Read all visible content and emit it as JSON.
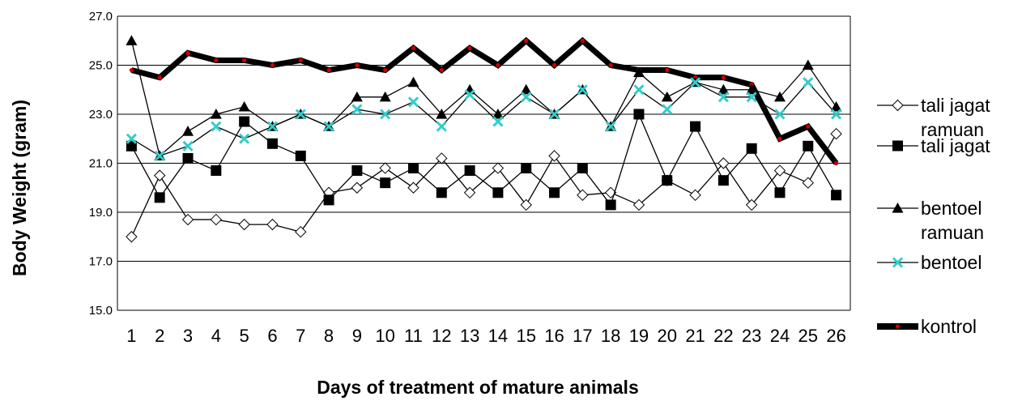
{
  "chart_data": {
    "type": "line",
    "xlabel": "Days of treatment of mature animals",
    "ylabel": "Body Weight (gram)",
    "ylim": [
      15,
      27
    ],
    "yticks": [
      "15.0",
      "17.0",
      "19.0",
      "21.0",
      "23.0",
      "25.0",
      "27.0"
    ],
    "grid": true,
    "legend_position": "right",
    "categories": [
      "1",
      "2",
      "3",
      "4",
      "5",
      "6",
      "7",
      "8",
      "9",
      "10",
      "11",
      "12",
      "13",
      "14",
      "15",
      "16",
      "17",
      "18",
      "19",
      "20",
      "21",
      "22",
      "23",
      "24",
      "25",
      "26"
    ],
    "series": [
      {
        "name": "tali jagat ramuan",
        "legend_lines": [
          "tali jagat",
          "ramuan"
        ],
        "marker": "open-diamond",
        "color": "#000000",
        "values": [
          18.0,
          20.5,
          18.7,
          18.7,
          18.5,
          18.5,
          18.2,
          19.8,
          20.0,
          20.8,
          20.0,
          21.2,
          19.8,
          20.8,
          19.3,
          21.3,
          19.7,
          19.8,
          19.3,
          20.3,
          19.7,
          21.0,
          19.3,
          20.7,
          20.2,
          22.2
        ]
      },
      {
        "name": "tali jagat",
        "legend_lines": [
          "tali jagat"
        ],
        "marker": "filled-square",
        "color": "#000000",
        "values": [
          21.7,
          19.6,
          21.2,
          20.7,
          22.7,
          21.8,
          21.3,
          19.5,
          20.7,
          20.2,
          20.8,
          19.8,
          20.7,
          19.8,
          20.8,
          19.8,
          20.8,
          19.3,
          23.0,
          20.3,
          22.5,
          20.3,
          21.6,
          19.8,
          21.7,
          19.7
        ]
      },
      {
        "name": "bentoel ramuan",
        "legend_lines": [
          "bentoel",
          "ramuan"
        ],
        "marker": "filled-triangle",
        "color": "#000000",
        "values": [
          26.0,
          21.3,
          22.3,
          23.0,
          23.3,
          22.5,
          23.0,
          22.5,
          23.7,
          23.7,
          24.3,
          23.0,
          24.0,
          23.0,
          24.0,
          23.0,
          24.0,
          22.5,
          24.7,
          23.7,
          24.3,
          24.0,
          24.0,
          23.7,
          25.0,
          23.3
        ]
      },
      {
        "name": "bentoel",
        "legend_lines": [
          "bentoel"
        ],
        "marker": "cyan-x",
        "color": "#000000",
        "marker_color": "#33CCCC",
        "values": [
          22.0,
          21.3,
          21.7,
          22.5,
          22.0,
          22.5,
          23.0,
          22.5,
          23.2,
          23.0,
          23.5,
          22.5,
          23.8,
          22.7,
          23.7,
          23.0,
          24.0,
          22.5,
          24.0,
          23.2,
          24.3,
          23.7,
          23.7,
          23.0,
          24.3,
          23.0
        ]
      },
      {
        "name": "kontrol",
        "legend_lines": [
          "kontrol"
        ],
        "marker": "small-red-dot",
        "color": "#000000",
        "marker_color": "#CC0000",
        "values": [
          24.8,
          24.5,
          25.5,
          25.2,
          25.2,
          25.0,
          25.2,
          24.8,
          25.0,
          24.8,
          25.7,
          24.8,
          25.7,
          25.0,
          26.0,
          25.0,
          26.0,
          25.0,
          24.8,
          24.8,
          24.5,
          24.5,
          24.2,
          22.0,
          22.5,
          21.0
        ]
      }
    ]
  }
}
